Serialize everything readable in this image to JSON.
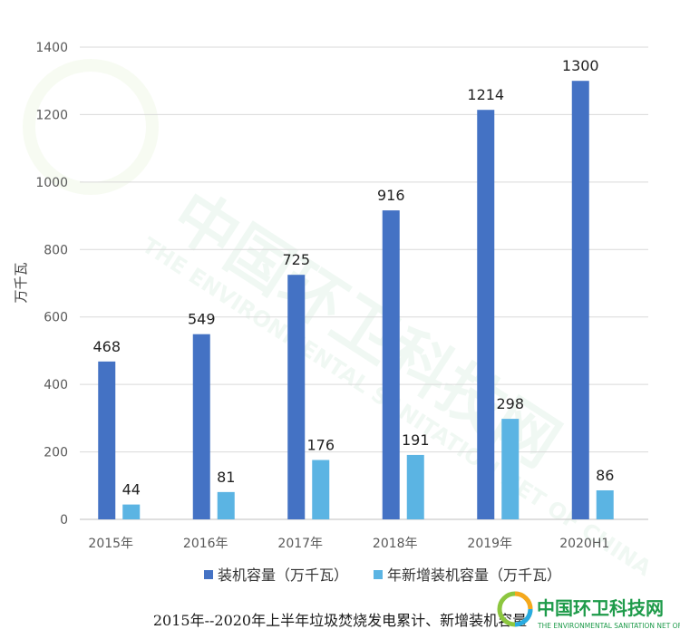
{
  "chart_data": {
    "type": "bar",
    "ylabel": "万千瓦",
    "ylim": [
      0,
      1400
    ],
    "yticks": [
      0,
      200,
      400,
      600,
      800,
      1000,
      1200,
      1400
    ],
    "grid": true,
    "legend_position": "bottom",
    "categories": [
      "2015年",
      "2016年",
      "2017年",
      "2018年",
      "2019年",
      "2020H1"
    ],
    "series": [
      {
        "name": "装机容量（万千瓦）",
        "color": "#4472C4",
        "values": [
          468,
          549,
          725,
          916,
          1214,
          1300
        ]
      },
      {
        "name": "年新增装机容量（万千瓦）",
        "color": "#5BB4E3",
        "values": [
          44,
          81,
          176,
          191,
          298,
          86
        ]
      }
    ],
    "caption": "2015年--2020年上半年垃圾焚烧发电累计、新增装机容量"
  },
  "watermark": {
    "text": "中国环卫科技网",
    "subtext": "THE ENVIRONMENTAL SANITATION NET OF CHINA",
    "logo_colors": [
      "#8CC63F",
      "#F6A81C",
      "#29ABE2"
    ],
    "text_color": "#1E9B4A"
  }
}
